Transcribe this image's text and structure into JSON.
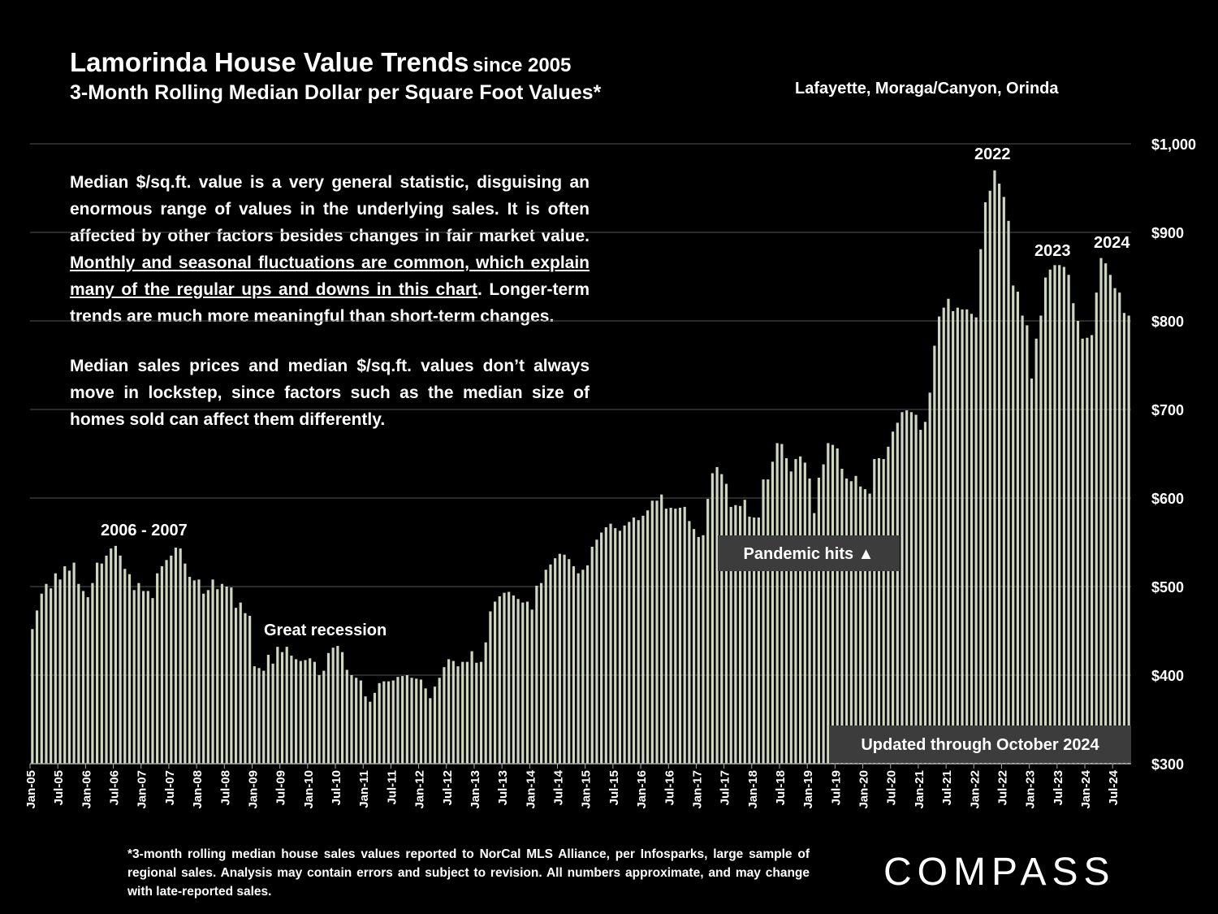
{
  "title": "Lamorinda House Value Trends",
  "title_since": "since 2005",
  "subtitle": "3-Month Rolling Median Dollar per Square Foot Values*",
  "region": "Lafayette, Moraga/Canyon, Orinda",
  "notes": {
    "p1_a": "Median $/sq.ft. value is a very general statistic, disguising an enormous range of values in the underlying sales. It is often affected by other factors besides changes in fair market value. ",
    "p1_u": "Monthly and seasonal fluctuations are common, which explain many of the regular ups and downs in this chart",
    "p1_b": ". Longer-term trends are much more meaningful than short-term changes.",
    "p2": "Median sales prices and median $/sq.ft. values don’t always move in lockstep, since factors such as the median size of homes sold can affect them differently."
  },
  "footnote": "*3-month rolling median house sales values reported to NorCal MLS Alliance, per Infosparks, large sample of regional sales. Analysis may contain errors and subject to revision. All numbers approximate, and may change with late-reported sales.",
  "logo": "COMPASS",
  "colors": {
    "background": "#000000",
    "bar": "#cfd6bf",
    "grid": "#555555",
    "label_box": "#3c3c3c"
  },
  "chart_data": {
    "type": "bar",
    "start": "Jan-05",
    "end": "Oct-24",
    "ylim": [
      300,
      1000
    ],
    "y_ticks": [
      "$300",
      "$400",
      "$500",
      "$600",
      "$700",
      "$800",
      "$900",
      "$1,000"
    ],
    "x_tick_labels": [
      "Jan-05",
      "Jul-05",
      "Jan-06",
      "Jul-06",
      "Jan-07",
      "Jul-07",
      "Jan-08",
      "Jul-08",
      "Jan-09",
      "Jul-09",
      "Jan-10",
      "Jul-10",
      "Jan-11",
      "Jul-11",
      "Jan-12",
      "Jul-12",
      "Jan-13",
      "Jul-13",
      "Jan-14",
      "Jul-14",
      "Jan-15",
      "Jul-15",
      "Jan-16",
      "Jul-16",
      "Jan-17",
      "Jul-17",
      "Jan-18",
      "Jul-18",
      "Jan-19",
      "Jul-19",
      "Jan-20",
      "Jul-20",
      "Jan-21",
      "Jul-21",
      "Jan-22",
      "Jul-22",
      "Jan-23",
      "Jul-23",
      "Jan-24",
      "Jul-24"
    ],
    "values": [
      452,
      473,
      492,
      503,
      498,
      515,
      508,
      523,
      518,
      527,
      503,
      495,
      488,
      504,
      527,
      526,
      535,
      543,
      546,
      535,
      520,
      514,
      496,
      504,
      495,
      495,
      487,
      515,
      523,
      530,
      535,
      544,
      543,
      526,
      511,
      507,
      508,
      492,
      496,
      508,
      497,
      503,
      500,
      499,
      476,
      482,
      470,
      467,
      410,
      408,
      405,
      423,
      413,
      432,
      426,
      432,
      422,
      418,
      416,
      417,
      419,
      415,
      400,
      405,
      425,
      431,
      433,
      426,
      406,
      400,
      397,
      394,
      376,
      370,
      380,
      391,
      393,
      393,
      394,
      398,
      399,
      400,
      397,
      396,
      395,
      385,
      374,
      387,
      397,
      409,
      418,
      416,
      410,
      415,
      415,
      427,
      414,
      415,
      437,
      472,
      483,
      489,
      493,
      494,
      490,
      486,
      482,
      483,
      474,
      501,
      504,
      519,
      525,
      532,
      537,
      536,
      531,
      523,
      515,
      519,
      524,
      545,
      553,
      561,
      567,
      571,
      566,
      563,
      569,
      573,
      578,
      575,
      580,
      586,
      597,
      597,
      604,
      588,
      589,
      588,
      589,
      590,
      574,
      565,
      556,
      558,
      599,
      628,
      635,
      627,
      616,
      590,
      592,
      591,
      598,
      579,
      578,
      578,
      621,
      621,
      641,
      662,
      661,
      645,
      630,
      644,
      647,
      640,
      622,
      583,
      623,
      638,
      662,
      660,
      656,
      633,
      622,
      619,
      625,
      613,
      610,
      605,
      644,
      645,
      644,
      658,
      675,
      685,
      697,
      699,
      697,
      694,
      677,
      686,
      719,
      772,
      805,
      815,
      825,
      811,
      815,
      813,
      813,
      808,
      804,
      881,
      934,
      947,
      970,
      955,
      940,
      913,
      840,
      833,
      806,
      795,
      735,
      780,
      806,
      849,
      858,
      863,
      863,
      861,
      852,
      820,
      800,
      780,
      781,
      784,
      832,
      871,
      865,
      852,
      837,
      832,
      809,
      806
    ],
    "annotations": [
      "2006 - 2007",
      "Great recession",
      "2022",
      "2023",
      "2024",
      "Pandemic hits ▲",
      "Updated through October 2024"
    ]
  }
}
